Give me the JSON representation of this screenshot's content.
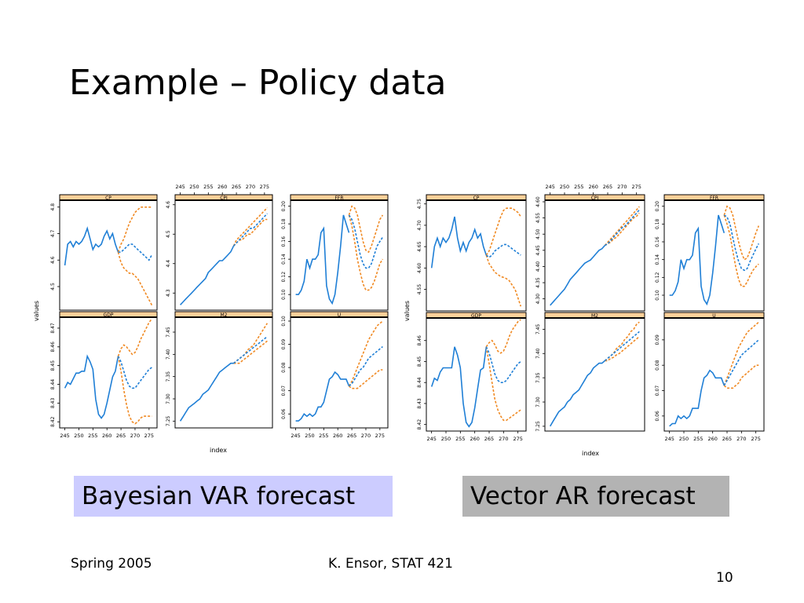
{
  "slide": {
    "title": "Example – Policy data",
    "captions": {
      "bayesian": "Bayesian VAR forecast",
      "var": "Vector AR forecast"
    },
    "footer": {
      "left": "Spring 2005",
      "center": "K. Ensor, STAT 421",
      "page": "10"
    }
  },
  "colors": {
    "history": "#1f7fd6",
    "interval": "#f08a24",
    "forecast": "#1f7fd6",
    "strip": "#ffd19a",
    "frame": "#000000"
  },
  "chart_data": [
    {
      "type": "line",
      "group": "Bayesian VAR forecast",
      "ylabel": "values",
      "xlabel": "index",
      "x_ticks": [
        "245",
        "250",
        "255",
        "260",
        "265",
        "270",
        "275"
      ],
      "xlim": [
        244,
        277
      ],
      "panels": [
        {
          "name": "CP",
          "ylim": [
            4.42,
            4.82
          ],
          "y_ticks": [
            "4.5",
            "4.6",
            "4.7",
            "4.8"
          ],
          "history": [
            4.58,
            4.66,
            4.67,
            4.65,
            4.67,
            4.66,
            4.67,
            4.69,
            4.72,
            4.68,
            4.64,
            4.66,
            4.65,
            4.66,
            4.69,
            4.71,
            4.68,
            4.7,
            4.66,
            4.63
          ],
          "forecast": [
            4.63,
            4.63,
            4.64,
            4.65,
            4.66,
            4.66,
            4.65,
            4.64,
            4.63,
            4.62,
            4.61,
            4.6,
            4.62
          ],
          "upper": [
            4.63,
            4.66,
            4.68,
            4.71,
            4.74,
            4.76,
            4.78,
            4.79,
            4.8,
            4.8,
            4.8,
            4.8,
            4.8
          ],
          "lower": [
            4.63,
            4.59,
            4.57,
            4.56,
            4.55,
            4.55,
            4.54,
            4.53,
            4.51,
            4.49,
            4.47,
            4.45,
            4.43
          ]
        },
        {
          "name": "CPI",
          "ylim": [
            4.25,
            4.61
          ],
          "y_ticks": [
            "4.3",
            "4.4",
            "4.5",
            "4.6"
          ],
          "history": [
            4.26,
            4.27,
            4.28,
            4.29,
            4.3,
            4.31,
            4.32,
            4.33,
            4.34,
            4.35,
            4.37,
            4.38,
            4.39,
            4.4,
            4.41,
            4.41,
            4.42,
            4.43,
            4.44,
            4.46
          ],
          "forecast": [
            4.46,
            4.47,
            4.48,
            4.49,
            4.5,
            4.51,
            4.52,
            4.52,
            4.53,
            4.54,
            4.55,
            4.56,
            4.57
          ],
          "upper": [
            4.46,
            4.48,
            4.49,
            4.5,
            4.51,
            4.52,
            4.53,
            4.54,
            4.55,
            4.56,
            4.57,
            4.58,
            4.59
          ],
          "lower": [
            4.46,
            4.47,
            4.48,
            4.48,
            4.49,
            4.5,
            4.5,
            4.51,
            4.52,
            4.53,
            4.54,
            4.55,
            4.55
          ]
        },
        {
          "name": "FFR",
          "ylim": [
            0.085,
            0.205
          ],
          "y_ticks": [
            "0.10",
            "0.12",
            "0.14",
            "0.16",
            "0.18",
            "0.20"
          ],
          "history": [
            0.1,
            0.1,
            0.105,
            0.115,
            0.14,
            0.13,
            0.14,
            0.14,
            0.145,
            0.17,
            0.175,
            0.11,
            0.095,
            0.09,
            0.1,
            0.125,
            0.155,
            0.19,
            0.18,
            0.17
          ],
          "forecast": [
            0.19,
            0.185,
            0.175,
            0.16,
            0.145,
            0.135,
            0.13,
            0.13,
            0.135,
            0.145,
            0.155,
            0.16,
            0.165
          ],
          "upper": [
            0.19,
            0.2,
            0.198,
            0.19,
            0.175,
            0.16,
            0.15,
            0.148,
            0.155,
            0.165,
            0.175,
            0.185,
            0.19
          ],
          "lower": [
            0.19,
            0.178,
            0.16,
            0.14,
            0.125,
            0.112,
            0.105,
            0.105,
            0.108,
            0.115,
            0.125,
            0.135,
            0.14
          ]
        },
        {
          "name": "GDP",
          "ylim": [
            8.418,
            8.475
          ],
          "y_ticks": [
            "8.42",
            "8.43",
            "8.44",
            "8.45",
            "8.46",
            "8.47"
          ],
          "history": [
            8.438,
            8.441,
            8.44,
            8.443,
            8.446,
            8.446,
            8.447,
            8.447,
            8.455,
            8.452,
            8.448,
            8.432,
            8.424,
            8.422,
            8.424,
            8.43,
            8.437,
            8.444,
            8.447,
            8.455
          ],
          "forecast": [
            8.455,
            8.452,
            8.447,
            8.442,
            8.439,
            8.438,
            8.438,
            8.44,
            8.442,
            8.444,
            8.446,
            8.448,
            8.449
          ],
          "upper": [
            8.455,
            8.459,
            8.461,
            8.46,
            8.458,
            8.456,
            8.457,
            8.46,
            8.464,
            8.467,
            8.47,
            8.473,
            8.475
          ],
          "lower": [
            8.455,
            8.447,
            8.437,
            8.429,
            8.423,
            8.42,
            8.419,
            8.42,
            8.422,
            8.423,
            8.423,
            8.423,
            8.423
          ]
        },
        {
          "name": "M2",
          "ylim": [
            7.24,
            7.48
          ],
          "y_ticks": [
            "7.25",
            "7.30",
            "7.35",
            "7.40",
            "7.45"
          ],
          "history": [
            7.25,
            7.26,
            7.27,
            7.28,
            7.285,
            7.29,
            7.295,
            7.3,
            7.31,
            7.315,
            7.32,
            7.33,
            7.34,
            7.35,
            7.36,
            7.365,
            7.37,
            7.375,
            7.38,
            7.38
          ],
          "forecast": [
            7.38,
            7.385,
            7.39,
            7.395,
            7.4,
            7.405,
            7.41,
            7.415,
            7.42,
            7.425,
            7.43,
            7.435,
            7.44
          ],
          "upper": [
            7.38,
            7.385,
            7.39,
            7.395,
            7.4,
            7.41,
            7.415,
            7.42,
            7.43,
            7.44,
            7.45,
            7.46,
            7.47
          ],
          "lower": [
            7.38,
            7.38,
            7.38,
            7.385,
            7.39,
            7.395,
            7.4,
            7.405,
            7.41,
            7.415,
            7.42,
            7.425,
            7.43
          ]
        },
        {
          "name": "U",
          "ylim": [
            0.055,
            0.101
          ],
          "y_ticks": [
            "0.06",
            "0.07",
            "0.08",
            "0.09",
            "0.10"
          ],
          "history": [
            0.057,
            0.057,
            0.058,
            0.06,
            0.059,
            0.06,
            0.059,
            0.06,
            0.063,
            0.063,
            0.065,
            0.07,
            0.075,
            0.076,
            0.078,
            0.077,
            0.075,
            0.075,
            0.075,
            0.072
          ],
          "forecast": [
            0.072,
            0.073,
            0.075,
            0.077,
            0.079,
            0.08,
            0.082,
            0.084,
            0.085,
            0.086,
            0.087,
            0.088,
            0.089
          ],
          "upper": [
            0.072,
            0.074,
            0.077,
            0.08,
            0.083,
            0.086,
            0.089,
            0.092,
            0.094,
            0.096,
            0.098,
            0.099,
            0.1
          ],
          "lower": [
            0.072,
            0.071,
            0.071,
            0.071,
            0.072,
            0.073,
            0.074,
            0.075,
            0.076,
            0.077,
            0.078,
            0.079,
            0.079
          ]
        }
      ]
    },
    {
      "type": "line",
      "group": "Vector AR forecast",
      "ylabel": "values",
      "xlabel": "index",
      "x_ticks": [
        "245",
        "250",
        "255",
        "260",
        "265",
        "270",
        "275"
      ],
      "xlim": [
        244,
        277
      ],
      "panels": [
        {
          "name": "CP",
          "ylim": [
            4.505,
            4.755
          ],
          "y_ticks": [
            "4.55",
            "4.60",
            "4.65",
            "4.70",
            "4.75"
          ],
          "history": [
            4.6,
            4.65,
            4.67,
            4.65,
            4.67,
            4.66,
            4.67,
            4.69,
            4.72,
            4.67,
            4.64,
            4.66,
            4.64,
            4.66,
            4.67,
            4.69,
            4.67,
            4.68,
            4.65,
            4.63
          ],
          "forecast": [
            4.63,
            4.625,
            4.63,
            4.64,
            4.645,
            4.65,
            4.655,
            4.655,
            4.65,
            4.645,
            4.64,
            4.635,
            4.63
          ],
          "upper": [
            4.63,
            4.64,
            4.66,
            4.68,
            4.7,
            4.72,
            4.735,
            4.74,
            4.74,
            4.74,
            4.735,
            4.73,
            4.72
          ],
          "lower": [
            4.63,
            4.61,
            4.6,
            4.59,
            4.585,
            4.58,
            4.578,
            4.575,
            4.57,
            4.56,
            4.55,
            4.53,
            4.51
          ]
        },
        {
          "name": "CPI",
          "ylim": [
            4.27,
            4.6
          ],
          "y_ticks": [
            "4.30",
            "4.35",
            "4.40",
            "4.45",
            "4.50",
            "4.55",
            "4.60"
          ],
          "history": [
            4.28,
            4.29,
            4.3,
            4.31,
            4.32,
            4.33,
            4.345,
            4.36,
            4.37,
            4.38,
            4.39,
            4.4,
            4.41,
            4.415,
            4.42,
            4.43,
            4.44,
            4.45,
            4.455,
            4.465
          ],
          "forecast": [
            4.465,
            4.47,
            4.48,
            4.49,
            4.5,
            4.51,
            4.52,
            4.525,
            4.535,
            4.545,
            4.555,
            4.565,
            4.575
          ],
          "upper": [
            4.465,
            4.475,
            4.485,
            4.495,
            4.505,
            4.515,
            4.525,
            4.535,
            4.545,
            4.555,
            4.565,
            4.575,
            4.585
          ],
          "lower": [
            4.465,
            4.47,
            4.475,
            4.485,
            4.49,
            4.5,
            4.51,
            4.52,
            4.53,
            4.54,
            4.55,
            4.555,
            4.565
          ]
        },
        {
          "name": "FFR",
          "ylim": [
            0.085,
            0.205
          ],
          "y_ticks": [
            "0.10",
            "0.12",
            "0.14",
            "0.16",
            "0.18",
            "0.20"
          ],
          "history": [
            0.1,
            0.1,
            0.105,
            0.115,
            0.14,
            0.13,
            0.14,
            0.14,
            0.145,
            0.17,
            0.175,
            0.11,
            0.095,
            0.09,
            0.1,
            0.125,
            0.155,
            0.19,
            0.18,
            0.17
          ],
          "forecast": [
            0.19,
            0.188,
            0.18,
            0.165,
            0.15,
            0.138,
            0.13,
            0.128,
            0.13,
            0.138,
            0.145,
            0.152,
            0.158
          ],
          "upper": [
            0.19,
            0.2,
            0.198,
            0.19,
            0.175,
            0.16,
            0.148,
            0.14,
            0.142,
            0.15,
            0.16,
            0.17,
            0.178
          ],
          "lower": [
            0.19,
            0.18,
            0.168,
            0.15,
            0.132,
            0.118,
            0.11,
            0.11,
            0.115,
            0.122,
            0.128,
            0.132,
            0.135
          ]
        },
        {
          "name": "GDP",
          "ylim": [
            8.418,
            8.47
          ],
          "y_ticks": [
            "8.42",
            "8.43",
            "8.44",
            "8.45",
            "8.46"
          ],
          "history": [
            8.438,
            8.442,
            8.441,
            8.445,
            8.447,
            8.447,
            8.447,
            8.447,
            8.457,
            8.453,
            8.447,
            8.43,
            8.421,
            8.419,
            8.421,
            8.428,
            8.437,
            8.446,
            8.447,
            8.457
          ],
          "forecast": [
            8.457,
            8.454,
            8.449,
            8.444,
            8.441,
            8.44,
            8.44,
            8.441,
            8.443,
            8.445,
            8.447,
            8.449,
            8.45
          ],
          "upper": [
            8.457,
            8.459,
            8.46,
            8.458,
            8.455,
            8.454,
            8.455,
            8.458,
            8.462,
            8.465,
            8.467,
            8.469,
            8.47
          ],
          "lower": [
            8.457,
            8.449,
            8.44,
            8.432,
            8.427,
            8.424,
            8.422,
            8.422,
            8.423,
            8.424,
            8.425,
            8.426,
            8.427
          ]
        },
        {
          "name": "M2",
          "ylim": [
            7.245,
            7.47
          ],
          "y_ticks": [
            "7.25",
            "7.30",
            "7.35",
            "7.40",
            "7.45"
          ],
          "history": [
            7.25,
            7.26,
            7.27,
            7.28,
            7.285,
            7.29,
            7.3,
            7.305,
            7.315,
            7.32,
            7.325,
            7.335,
            7.345,
            7.355,
            7.36,
            7.37,
            7.375,
            7.38,
            7.38,
            7.385
          ],
          "forecast": [
            7.385,
            7.39,
            7.395,
            7.4,
            7.405,
            7.41,
            7.415,
            7.42,
            7.425,
            7.43,
            7.435,
            7.44,
            7.445
          ],
          "upper": [
            7.385,
            7.39,
            7.395,
            7.4,
            7.41,
            7.415,
            7.42,
            7.43,
            7.435,
            7.445,
            7.45,
            7.46,
            7.465
          ],
          "lower": [
            7.385,
            7.385,
            7.39,
            7.392,
            7.397,
            7.4,
            7.405,
            7.41,
            7.415,
            7.42,
            7.425,
            7.43,
            7.435
          ]
        },
        {
          "name": "U",
          "ylim": [
            0.055,
            0.098
          ],
          "y_ticks": [
            "0.06",
            "0.07",
            "0.08",
            "0.09"
          ],
          "history": [
            0.056,
            0.057,
            0.057,
            0.06,
            0.059,
            0.06,
            0.059,
            0.06,
            0.063,
            0.063,
            0.063,
            0.07,
            0.075,
            0.076,
            0.078,
            0.077,
            0.075,
            0.075,
            0.075,
            0.072
          ],
          "forecast": [
            0.072,
            0.074,
            0.076,
            0.078,
            0.08,
            0.082,
            0.084,
            0.085,
            0.086,
            0.087,
            0.088,
            0.089,
            0.09
          ],
          "upper": [
            0.072,
            0.075,
            0.078,
            0.081,
            0.084,
            0.087,
            0.089,
            0.091,
            0.093,
            0.094,
            0.095,
            0.096,
            0.097
          ],
          "lower": [
            0.072,
            0.071,
            0.071,
            0.071,
            0.072,
            0.073,
            0.075,
            0.076,
            0.077,
            0.078,
            0.079,
            0.08,
            0.08
          ]
        }
      ]
    }
  ]
}
